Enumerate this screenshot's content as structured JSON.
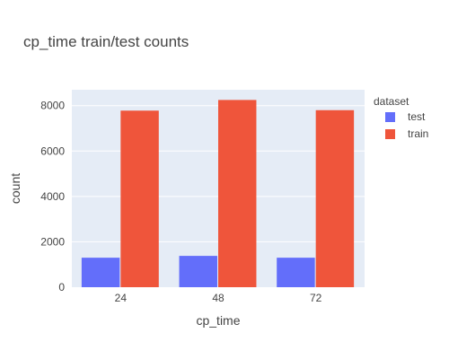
{
  "chart_data": {
    "type": "bar",
    "title": "cp_time train/test counts",
    "xlabel": "cp_time",
    "ylabel": "count",
    "categories": [
      "24",
      "48",
      "72"
    ],
    "series": [
      {
        "name": "test",
        "values": [
          1300,
          1380,
          1300
        ],
        "color": "#636efa"
      },
      {
        "name": "train",
        "values": [
          7780,
          8250,
          7800
        ],
        "color": "#ef553b"
      }
    ],
    "ylim": [
      0,
      8700
    ],
    "yticks": [
      0,
      2000,
      4000,
      6000,
      8000
    ],
    "ytick_labels": [
      "0",
      "2000",
      "4000",
      "6000",
      "8000"
    ],
    "grid": true,
    "plot_background": "#e5ecf6",
    "legend": {
      "title": "dataset",
      "placement": "top-right"
    }
  }
}
